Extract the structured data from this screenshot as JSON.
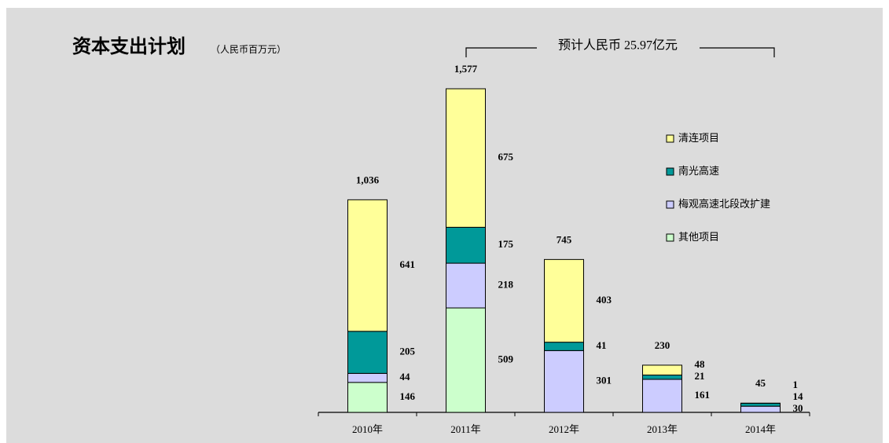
{
  "chart_data": {
    "type": "stacked_bar",
    "title": "资本支出计划",
    "subtitle": "（人民币百万元）",
    "annotation": "预计人民币 25.97亿元",
    "categories": [
      "2010年",
      "2011年",
      "2012年",
      "2013年",
      "2014年"
    ],
    "series": [
      {
        "name": "其他项目",
        "color": "#ccffcc",
        "values": [
          146,
          509,
          null,
          null,
          null
        ]
      },
      {
        "name": "梅观高速北段改扩建",
        "color": "#ccccff",
        "values": [
          44,
          218,
          301,
          161,
          30
        ]
      },
      {
        "name": "南光高速",
        "color": "#009999",
        "values": [
          205,
          175,
          41,
          21,
          14
        ]
      },
      {
        "name": "清连项目",
        "color": "#ffff99",
        "values": [
          641,
          675,
          403,
          48,
          1
        ]
      }
    ],
    "totals": [
      1036,
      1577,
      745,
      230,
      45
    ],
    "totals_labels": [
      "1,036",
      "1,577",
      "745",
      "230",
      "45"
    ],
    "ylim": [
      0,
      1600
    ]
  }
}
